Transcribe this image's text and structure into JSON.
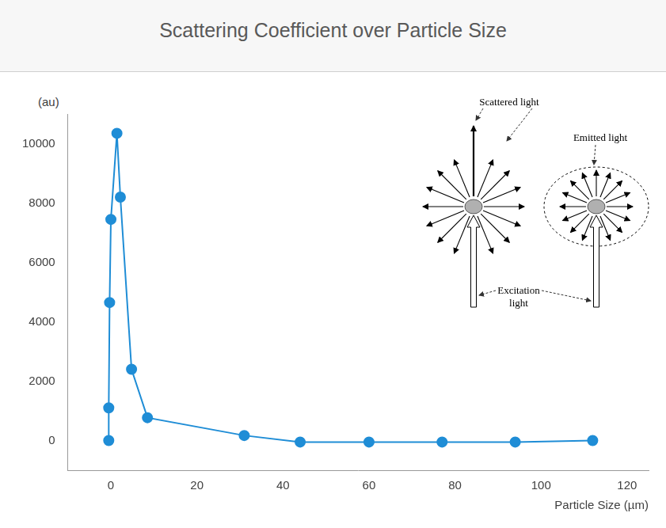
{
  "chart_data": {
    "type": "line",
    "title": "Scattering Coefficient over Particle Size",
    "y_label": "(au)",
    "x_label": "Particle Size (µm)",
    "x": [
      -0.5,
      -0.5,
      -0.3,
      0,
      1.4,
      2.2,
      4.8,
      8.5,
      31,
      44,
      60,
      77,
      94,
      112
    ],
    "values": [
      0,
      1100,
      4650,
      7450,
      10350,
      8200,
      2400,
      770,
      170,
      -50,
      -50,
      -50,
      -50,
      0
    ],
    "color": "#1f8dd6",
    "marker": "circle",
    "xlim": [
      -10,
      125
    ],
    "xticks": [
      0,
      20,
      40,
      60,
      80,
      100,
      120
    ],
    "ylim": [
      -1000,
      11000
    ],
    "yticks": [
      0,
      2000,
      4000,
      6000,
      8000,
      10000
    ],
    "grid": false,
    "annotations": [
      "Scattered light",
      "Emitted light",
      "Excitation light"
    ]
  }
}
